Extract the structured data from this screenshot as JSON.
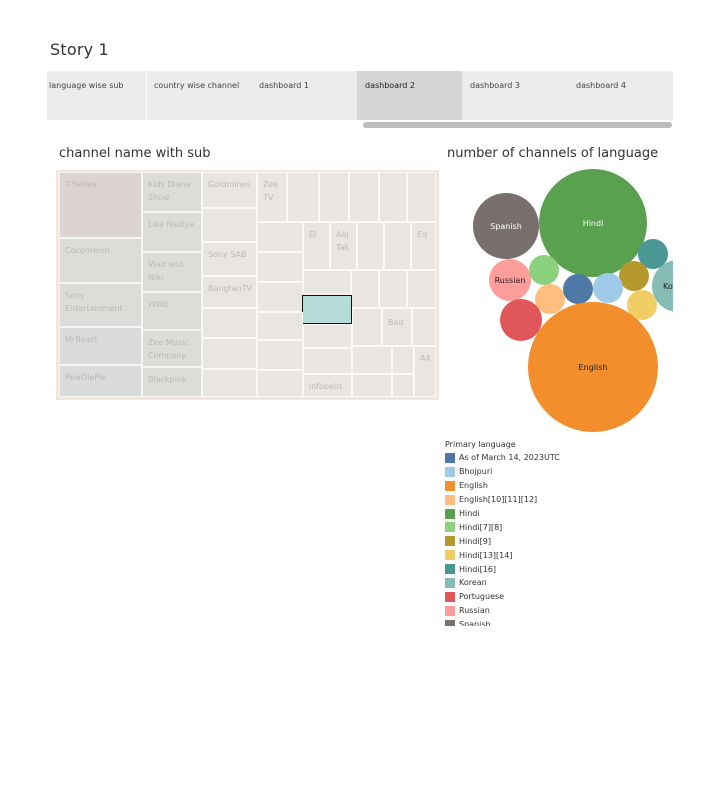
{
  "story": {
    "title": "Story 1"
  },
  "tabs": [
    {
      "label": "language wise sub",
      "active": false
    },
    {
      "label": "country wise channel",
      "active": false
    },
    {
      "label": "dashboard 1",
      "active": false
    },
    {
      "label": "dashboard 2",
      "active": true
    },
    {
      "label": "dashboard 3",
      "active": false
    },
    {
      "label": "dashboard 4",
      "active": false
    }
  ],
  "treemap": {
    "title": "channel name with sub",
    "labels": {
      "t_series": "T-Series",
      "kids_diana": "Kids Diana Show",
      "goldmines": "Goldmines",
      "zee_tv": "Zee TV",
      "like_nastya": "Like Nastya",
      "el": "El",
      "aaj_tak": "Aaj Tak",
      "ed": "Ed",
      "cocomelon": "Cocomelon",
      "vlad_niki": "Vlad and Niki",
      "sony_sab": "Sony SAB",
      "sony_ent": "Sony Entertainment",
      "wwe": "WWE",
      "bangtantv": "BangtanTV",
      "mrbeast": "MrBeast",
      "zee_music": "Zee Music Company",
      "bad": "Bad",
      "pewdiepie": "PewDiePie",
      "blackpink": "Blackpink",
      "infobells": "infobells",
      "a4": "A4"
    }
  },
  "bubble_chart": {
    "title": "number of channels of language",
    "labels": {
      "spanish": "Spanish",
      "hindi": "Hindi",
      "russian": "Russian",
      "english": "English",
      "korean": "Ko"
    }
  },
  "legend": {
    "title": "Primary language",
    "items": [
      {
        "label": "As of March 14, 2023UTC",
        "color": "#4e79a7"
      },
      {
        "label": "Bhojpuri",
        "color": "#a0cbe8"
      },
      {
        "label": "English",
        "color": "#f28e2b"
      },
      {
        "label": "English[10][11][12]",
        "color": "#ffbe7d"
      },
      {
        "label": "Hindi",
        "color": "#59a14f"
      },
      {
        "label": "Hindi[7][8]",
        "color": "#8cd17d"
      },
      {
        "label": "Hindi[9]",
        "color": "#b6992d"
      },
      {
        "label": "Hindi[13][14]",
        "color": "#f1ce63"
      },
      {
        "label": "Hindi[16]",
        "color": "#499894"
      },
      {
        "label": "Korean",
        "color": "#86bcb6"
      },
      {
        "label": "Portuguese",
        "color": "#e15759"
      },
      {
        "label": "Russian",
        "color": "#ff9d9a"
      },
      {
        "label": "Spanish",
        "color": "#79706e"
      }
    ]
  }
}
